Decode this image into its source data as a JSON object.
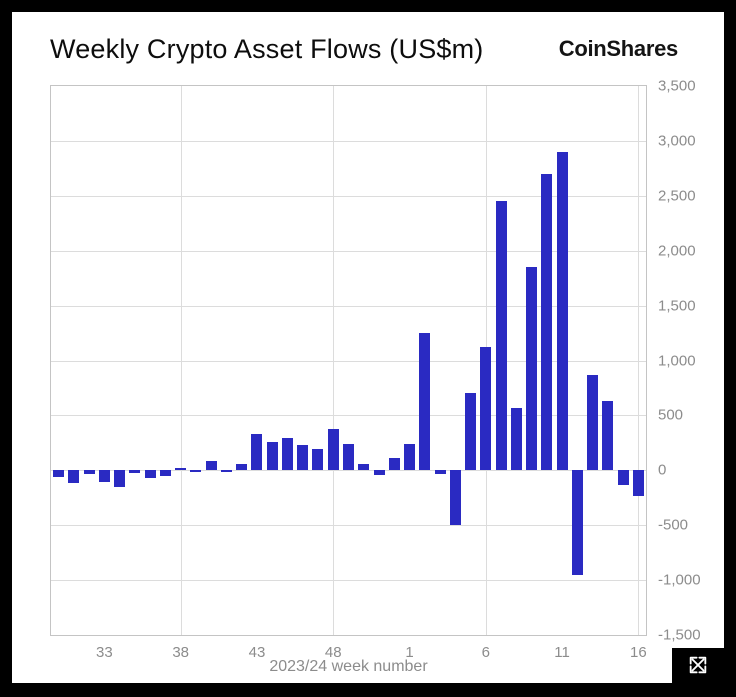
{
  "header": {
    "title": "Weekly Crypto Asset Flows (US$m)",
    "brand": "CoinShares"
  },
  "colors": {
    "bar": "#2a2ac2",
    "grid": "#dcdcdc",
    "axis_text": "#8c8c8c",
    "background": "#ffffff",
    "frame": "#000000"
  },
  "chart_data": {
    "type": "bar",
    "title": "Weekly Crypto Asset Flows (US$m)",
    "xlabel": "2023/24 week number",
    "ylabel": "",
    "ylim": [
      -1500,
      3500
    ],
    "grid": true,
    "ytick_values": [
      3500,
      3000,
      2500,
      2000,
      1500,
      1000,
      500,
      0,
      -500,
      -1000,
      -1500
    ],
    "ytick_labels": [
      "3,500",
      "3,000",
      "2,500",
      "2,000",
      "1,500",
      "1,000",
      "500",
      "0",
      "-500",
      "-1,000",
      "-1,500"
    ],
    "categories": [
      30,
      31,
      32,
      33,
      34,
      35,
      36,
      37,
      38,
      39,
      40,
      41,
      42,
      43,
      44,
      45,
      46,
      47,
      48,
      49,
      50,
      51,
      52,
      1,
      2,
      3,
      4,
      5,
      6,
      7,
      8,
      9,
      10,
      11,
      12,
      13,
      14,
      15,
      16
    ],
    "values": [
      -60,
      -120,
      -30,
      -110,
      -150,
      -25,
      -70,
      -55,
      25,
      -15,
      85,
      -20,
      55,
      330,
      255,
      290,
      230,
      195,
      380,
      235,
      60,
      -40,
      110,
      240,
      1250,
      -30,
      -500,
      700,
      1120,
      2450,
      570,
      1850,
      2700,
      2900,
      -950,
      870,
      630,
      -130,
      -230
    ],
    "xticks": [
      {
        "label": "33",
        "week": 33
      },
      {
        "label": "38",
        "week": 38
      },
      {
        "label": "43",
        "week": 43
      },
      {
        "label": "48",
        "week": 48
      },
      {
        "label": "1",
        "week": 1
      },
      {
        "label": "6",
        "week": 6
      },
      {
        "label": "11",
        "week": 11
      },
      {
        "label": "16",
        "week": 16
      }
    ],
    "vgrid_weeks": [
      38,
      48,
      6,
      16
    ]
  },
  "icons": {
    "expand": "expand-icon"
  }
}
